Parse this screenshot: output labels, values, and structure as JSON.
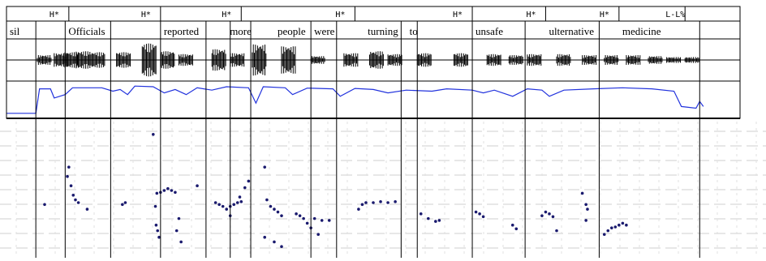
{
  "tones": [
    {
      "label": "H*",
      "t": 0.085
    },
    {
      "label": "H*",
      "t": 0.21
    },
    {
      "label": "H*",
      "t": 0.32
    },
    {
      "label": "H*",
      "t": 0.475
    },
    {
      "label": "H*",
      "t": 0.635
    },
    {
      "label": "H*",
      "t": 0.735
    },
    {
      "label": "H*",
      "t": 0.835
    },
    {
      "label": "L-L%",
      "t": 0.925
    }
  ],
  "words": [
    {
      "label": "sil",
      "t": 0.0
    },
    {
      "label": "Officials",
      "t": 0.08
    },
    {
      "label": "reported",
      "t": 0.21
    },
    {
      "label": "more",
      "t": 0.3
    },
    {
      "label": "people",
      "t": 0.365
    },
    {
      "label": "were",
      "t": 0.415
    },
    {
      "label": "turning",
      "t": 0.488
    },
    {
      "label": "to",
      "t": 0.545
    },
    {
      "label": "unsafe",
      "t": 0.635
    },
    {
      "label": "ulternative",
      "t": 0.735
    },
    {
      "label": "medicine",
      "t": 0.835
    }
  ],
  "end_t": 0.945,
  "boundaries": [
    0.04,
    0.08,
    0.142,
    0.21,
    0.272,
    0.305,
    0.333,
    0.415,
    0.45,
    0.538,
    0.56,
    0.635,
    0.707,
    0.808,
    0.945
  ],
  "waveform_segments": [
    {
      "t": 0.052,
      "amp": 0.25
    },
    {
      "t": 0.075,
      "amp": 0.35
    },
    {
      "t": 0.088,
      "amp": 0.4
    },
    {
      "t": 0.105,
      "amp": 0.45
    },
    {
      "t": 0.125,
      "amp": 0.4
    },
    {
      "t": 0.16,
      "amp": 0.4
    },
    {
      "t": 0.195,
      "amp": 0.85
    },
    {
      "t": 0.22,
      "amp": 0.45
    },
    {
      "t": 0.245,
      "amp": 0.3
    },
    {
      "t": 0.29,
      "amp": 0.55
    },
    {
      "t": 0.315,
      "amp": 0.35
    },
    {
      "t": 0.345,
      "amp": 0.8
    },
    {
      "t": 0.385,
      "amp": 0.7
    },
    {
      "t": 0.425,
      "amp": 0.2
    },
    {
      "t": 0.47,
      "amp": 0.35
    },
    {
      "t": 0.505,
      "amp": 0.45
    },
    {
      "t": 0.53,
      "amp": 0.3
    },
    {
      "t": 0.57,
      "amp": 0.35
    },
    {
      "t": 0.62,
      "amp": 0.35
    },
    {
      "t": 0.665,
      "amp": 0.3
    },
    {
      "t": 0.695,
      "amp": 0.25
    },
    {
      "t": 0.72,
      "amp": 0.3
    },
    {
      "t": 0.76,
      "amp": 0.3
    },
    {
      "t": 0.795,
      "amp": 0.25
    },
    {
      "t": 0.825,
      "amp": 0.25
    },
    {
      "t": 0.855,
      "amp": 0.25
    },
    {
      "t": 0.885,
      "amp": 0.2
    },
    {
      "t": 0.91,
      "amp": 0.15
    },
    {
      "t": 0.935,
      "amp": 0.15
    }
  ],
  "pitch_track": [
    [
      0.0,
      0.1
    ],
    [
      0.04,
      0.1
    ],
    [
      0.045,
      0.82
    ],
    [
      0.06,
      0.82
    ],
    [
      0.065,
      0.55
    ],
    [
      0.08,
      0.65
    ],
    [
      0.09,
      0.85
    ],
    [
      0.13,
      0.85
    ],
    [
      0.145,
      0.75
    ],
    [
      0.155,
      0.8
    ],
    [
      0.165,
      0.65
    ],
    [
      0.175,
      0.9
    ],
    [
      0.2,
      0.88
    ],
    [
      0.215,
      0.7
    ],
    [
      0.23,
      0.8
    ],
    [
      0.245,
      0.65
    ],
    [
      0.26,
      0.85
    ],
    [
      0.28,
      0.78
    ],
    [
      0.3,
      0.88
    ],
    [
      0.33,
      0.85
    ],
    [
      0.34,
      0.4
    ],
    [
      0.35,
      0.88
    ],
    [
      0.38,
      0.85
    ],
    [
      0.39,
      0.65
    ],
    [
      0.41,
      0.84
    ],
    [
      0.445,
      0.82
    ],
    [
      0.455,
      0.6
    ],
    [
      0.475,
      0.83
    ],
    [
      0.5,
      0.8
    ],
    [
      0.52,
      0.7
    ],
    [
      0.545,
      0.78
    ],
    [
      0.58,
      0.75
    ],
    [
      0.6,
      0.82
    ],
    [
      0.635,
      0.78
    ],
    [
      0.65,
      0.7
    ],
    [
      0.665,
      0.78
    ],
    [
      0.69,
      0.6
    ],
    [
      0.71,
      0.82
    ],
    [
      0.73,
      0.78
    ],
    [
      0.74,
      0.6
    ],
    [
      0.76,
      0.78
    ],
    [
      0.8,
      0.82
    ],
    [
      0.84,
      0.85
    ],
    [
      0.88,
      0.82
    ],
    [
      0.91,
      0.75
    ],
    [
      0.92,
      0.3
    ],
    [
      0.94,
      0.25
    ],
    [
      0.945,
      0.45
    ],
    [
      0.95,
      0.3
    ]
  ],
  "f0_points": [
    [
      0.052,
      0.8
    ],
    [
      0.083,
      0.5
    ],
    [
      0.085,
      0.4
    ],
    [
      0.088,
      0.6
    ],
    [
      0.091,
      0.7
    ],
    [
      0.094,
      0.75
    ],
    [
      0.098,
      0.78
    ],
    [
      0.11,
      0.85
    ],
    [
      0.158,
      0.8
    ],
    [
      0.162,
      0.78
    ],
    [
      0.2,
      0.05
    ],
    [
      0.203,
      0.82
    ],
    [
      0.205,
      0.68
    ],
    [
      0.21,
      0.67
    ],
    [
      0.215,
      0.65
    ],
    [
      0.22,
      0.63
    ],
    [
      0.225,
      0.65
    ],
    [
      0.23,
      0.67
    ],
    [
      0.204,
      1.02
    ],
    [
      0.206,
      1.08
    ],
    [
      0.208,
      1.15
    ],
    [
      0.235,
      0.95
    ],
    [
      0.232,
      1.08
    ],
    [
      0.238,
      1.2
    ],
    [
      0.26,
      0.6
    ],
    [
      0.285,
      0.78
    ],
    [
      0.29,
      0.8
    ],
    [
      0.295,
      0.82
    ],
    [
      0.3,
      0.85
    ],
    [
      0.305,
      0.82
    ],
    [
      0.31,
      0.8
    ],
    [
      0.315,
      0.78
    ],
    [
      0.318,
      0.72
    ],
    [
      0.305,
      0.92
    ],
    [
      0.32,
      0.77
    ],
    [
      0.325,
      0.62
    ],
    [
      0.33,
      0.55
    ],
    [
      0.352,
      0.4
    ],
    [
      0.355,
      0.75
    ],
    [
      0.36,
      0.82
    ],
    [
      0.365,
      0.85
    ],
    [
      0.37,
      0.88
    ],
    [
      0.375,
      0.92
    ],
    [
      0.352,
      1.15
    ],
    [
      0.365,
      1.2
    ],
    [
      0.375,
      1.25
    ],
    [
      0.395,
      0.9
    ],
    [
      0.4,
      0.92
    ],
    [
      0.405,
      0.95
    ],
    [
      0.41,
      1.0
    ],
    [
      0.415,
      1.05
    ],
    [
      0.42,
      0.95
    ],
    [
      0.43,
      0.97
    ],
    [
      0.44,
      0.97
    ],
    [
      0.425,
      1.12
    ],
    [
      0.48,
      0.85
    ],
    [
      0.485,
      0.8
    ],
    [
      0.49,
      0.78
    ],
    [
      0.5,
      0.78
    ],
    [
      0.51,
      0.77
    ],
    [
      0.52,
      0.78
    ],
    [
      0.53,
      0.77
    ],
    [
      0.565,
      0.9
    ],
    [
      0.575,
      0.95
    ],
    [
      0.585,
      0.98
    ],
    [
      0.59,
      0.97
    ],
    [
      0.64,
      0.88
    ],
    [
      0.645,
      0.9
    ],
    [
      0.65,
      0.93
    ],
    [
      0.69,
      1.02
    ],
    [
      0.695,
      1.06
    ],
    [
      0.73,
      0.92
    ],
    [
      0.735,
      0.88
    ],
    [
      0.74,
      0.9
    ],
    [
      0.745,
      0.93
    ],
    [
      0.75,
      1.08
    ],
    [
      0.785,
      0.68
    ],
    [
      0.79,
      0.8
    ],
    [
      0.792,
      0.85
    ],
    [
      0.79,
      0.97
    ],
    [
      0.815,
      1.12
    ],
    [
      0.82,
      1.08
    ],
    [
      0.825,
      1.05
    ],
    [
      0.83,
      1.04
    ],
    [
      0.835,
      1.02
    ],
    [
      0.84,
      1.0
    ],
    [
      0.845,
      1.02
    ]
  ]
}
